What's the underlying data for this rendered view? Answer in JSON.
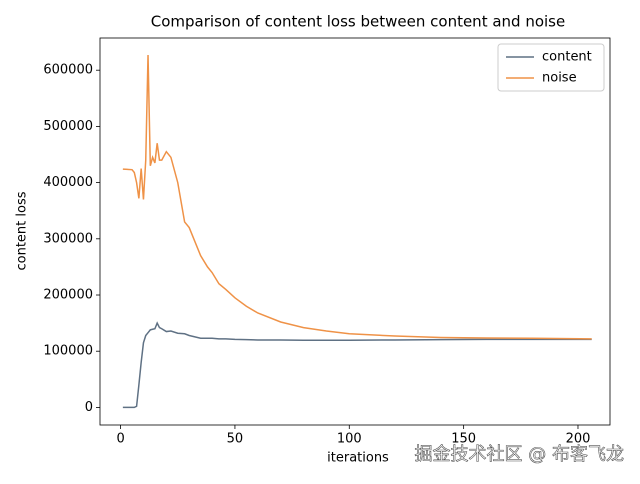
{
  "chart_data": {
    "type": "line",
    "title": "Comparison of content loss between content and noise",
    "x_label": "iterations",
    "y_label": "content loss",
    "x": [
      1,
      5,
      6,
      7,
      8,
      9,
      10,
      11,
      12,
      13,
      14,
      15,
      16,
      17,
      18,
      20,
      22,
      25,
      28,
      30,
      35,
      38,
      40,
      43,
      46,
      50,
      55,
      60,
      70,
      80,
      90,
      100,
      120,
      140,
      160,
      180,
      206
    ],
    "series": [
      {
        "name": "content",
        "color": "#5f7184",
        "values": [
          0,
          0,
          0,
          2000,
          40000,
          80000,
          115000,
          128000,
          133000,
          138000,
          139000,
          140000,
          150000,
          142000,
          140000,
          135000,
          136000,
          132000,
          131000,
          128000,
          123000,
          123000,
          123000,
          122000,
          122000,
          121000,
          120500,
          120000,
          120000,
          119500,
          119500,
          119500,
          120000,
          120500,
          121000,
          121000,
          121000
        ]
      },
      {
        "name": "noise",
        "color": "#ef9247",
        "values": [
          424000,
          423000,
          418000,
          400000,
          372000,
          425000,
          370000,
          440000,
          627000,
          430000,
          445000,
          435000,
          470000,
          440000,
          440000,
          455000,
          445000,
          400000,
          330000,
          320000,
          270000,
          250000,
          240000,
          220000,
          210000,
          195000,
          180000,
          168000,
          152000,
          142000,
          136000,
          131000,
          127000,
          124500,
          123500,
          123000,
          122000
        ]
      }
    ],
    "xlim": [
      -9,
      214
    ],
    "ylim": [
      -31300,
      657300
    ],
    "xticks": [
      0,
      50,
      100,
      150,
      200
    ],
    "yticks": [
      0,
      100000,
      200000,
      300000,
      400000,
      500000,
      600000
    ],
    "legend": "upper right",
    "watermark": "掘金技术社区 @ 布客飞龙"
  }
}
